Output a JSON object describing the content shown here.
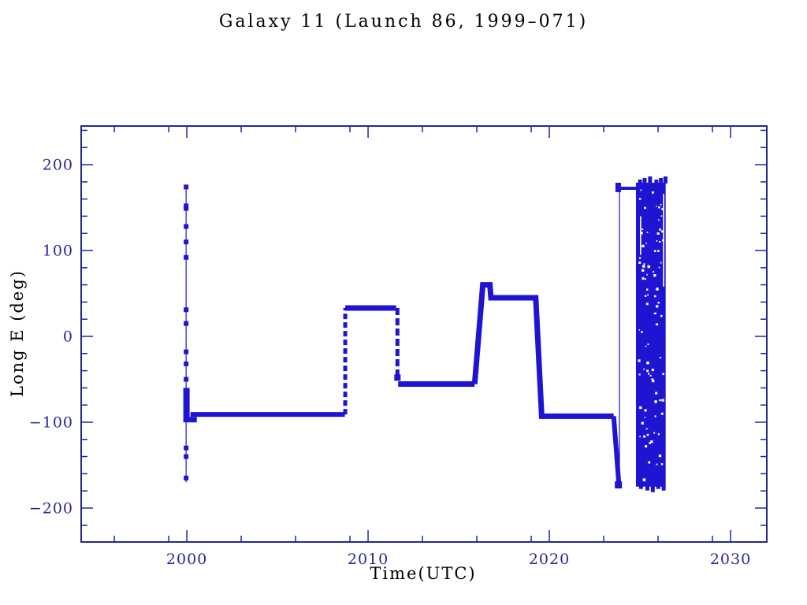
{
  "colors": {
    "ink": "#26269a",
    "curve": "#1e14d2",
    "background": "#ffffff"
  },
  "chart_data": {
    "type": "line",
    "title": "Galaxy 11 (Launch 86, 1999–071)",
    "xlabel": "Time(UTC)",
    "ylabel": "Long E (deg)",
    "xlim": [
      1994.17,
      2032.0
    ],
    "ylim": [
      -239.5,
      245.0
    ],
    "grid": false,
    "legend": "none",
    "x_major_ticks": [
      2000,
      2010,
      2020,
      2030
    ],
    "x_tick_labels": [
      "2000",
      "2010",
      "2020",
      "2030"
    ],
    "x_minor_ticks": [
      1996,
      1999,
      2003,
      2006,
      2009,
      2013,
      2016,
      2019,
      2023,
      2026,
      2029
    ],
    "y_major_ticks": [
      200,
      100,
      0,
      -100,
      -200
    ],
    "y_tick_labels": [
      "200",
      "100",
      "0",
      "−100",
      "−200"
    ],
    "y_minor_ticks": [
      240,
      220,
      180,
      160,
      140,
      120,
      80,
      60,
      40,
      20,
      -20,
      -40,
      -60,
      -80,
      -120,
      -140,
      -160,
      -180,
      -220
    ],
    "plateaus": [
      {
        "start": 2000.2,
        "end": 2008.7,
        "longitude_deg": -91
      },
      {
        "start": 2008.8,
        "end": 2011.6,
        "longitude_deg": 33
      },
      {
        "start": 2011.7,
        "end": 2015.9,
        "longitude_deg": -55.5
      },
      {
        "start": 2016.3,
        "end": 2016.7,
        "longitude_deg": 60
      },
      {
        "start": 2016.8,
        "end": 2019.2,
        "longitude_deg": 45
      },
      {
        "start": 2019.6,
        "end": 2023.6,
        "longitude_deg": -93
      },
      {
        "start": 2023.9,
        "end": 2024.8,
        "longitude_deg": 172
      },
      {
        "start": 2024.8,
        "end": 2026.4,
        "longitude_deg": "drift cycling -180 to +180"
      }
    ],
    "segments": [
      {
        "kind": "line",
        "w": 1.2,
        "pts": [
          [
            1999.96,
            176
          ],
          [
            1999.96,
            -170
          ]
        ]
      },
      {
        "kind": "markers",
        "size": 6,
        "t": 1999.96,
        "values": [
          174,
          152,
          149,
          128,
          110,
          92,
          31,
          15,
          -18,
          -32,
          -50,
          -70,
          -90,
          -130,
          -140,
          -165
        ]
      },
      {
        "kind": "line",
        "w": 8,
        "pts": [
          [
            1999.98,
            -60
          ],
          [
            1999.98,
            -100
          ]
        ]
      },
      {
        "kind": "line",
        "w": 7,
        "pts": [
          [
            1999.98,
            -97
          ],
          [
            2000.55,
            -97
          ]
        ]
      },
      {
        "kind": "line",
        "w": 6,
        "pts": [
          [
            2000.2,
            -91
          ],
          [
            2008.72,
            -91
          ]
        ]
      },
      {
        "kind": "dash",
        "w": 5,
        "dash": [
          7,
          4
        ],
        "pts": [
          [
            2008.74,
            -91
          ],
          [
            2008.74,
            33
          ]
        ]
      },
      {
        "kind": "line",
        "w": 7,
        "pts": [
          [
            2008.74,
            33
          ],
          [
            2011.55,
            33
          ]
        ]
      },
      {
        "kind": "dash",
        "w": 5,
        "dash": [
          9,
          4
        ],
        "pts": [
          [
            2011.62,
            33
          ],
          [
            2011.62,
            -50
          ]
        ]
      },
      {
        "kind": "markers",
        "size": 8,
        "t": 2011.62,
        "values": [
          -48
        ]
      },
      {
        "kind": "line",
        "w": 7,
        "pts": [
          [
            2011.66,
            -55.5
          ],
          [
            2015.88,
            -55.5
          ]
        ]
      },
      {
        "kind": "line",
        "w": 7,
        "pts": [
          [
            2015.88,
            -55.5
          ],
          [
            2016.33,
            60
          ],
          [
            2016.72,
            60
          ],
          [
            2016.78,
            45
          ],
          [
            2019.25,
            45
          ],
          [
            2019.58,
            -93
          ],
          [
            2023.55,
            -93
          ]
        ]
      },
      {
        "kind": "line",
        "w": 6,
        "pts": [
          [
            2023.55,
            -93
          ],
          [
            2023.83,
            -170
          ]
        ]
      },
      {
        "kind": "markers",
        "size": 9,
        "t": 2023.81,
        "values": [
          -173
        ]
      },
      {
        "kind": "line",
        "w": 1.2,
        "pts": [
          [
            2023.87,
            -172
          ],
          [
            2023.87,
            177
          ]
        ]
      },
      {
        "kind": "line",
        "w": 7,
        "pts": [
          [
            2023.8,
            179
          ],
          [
            2023.8,
            168
          ]
        ]
      },
      {
        "kind": "line",
        "w": 4,
        "pts": [
          [
            2023.83,
            172.5
          ],
          [
            2024.8,
            172.5
          ]
        ]
      }
    ],
    "dense_block": {
      "t0": 2024.78,
      "t1": 2026.42,
      "d_lo": -175,
      "d_hi": 179,
      "speckle_count": 90,
      "fringe_top": [
        2024.9,
        2025.15,
        2025.45,
        2025.8,
        2026.05,
        2026.3
      ],
      "fringe_bottom": [
        2024.95,
        2025.3,
        2025.6,
        2025.9,
        2026.2
      ],
      "white_slits": [
        {
          "t": 2026.27,
          "d0": 166,
          "d1": 58
        },
        {
          "t": 2025.0,
          "d0": 140,
          "d1": 95
        }
      ]
    }
  }
}
